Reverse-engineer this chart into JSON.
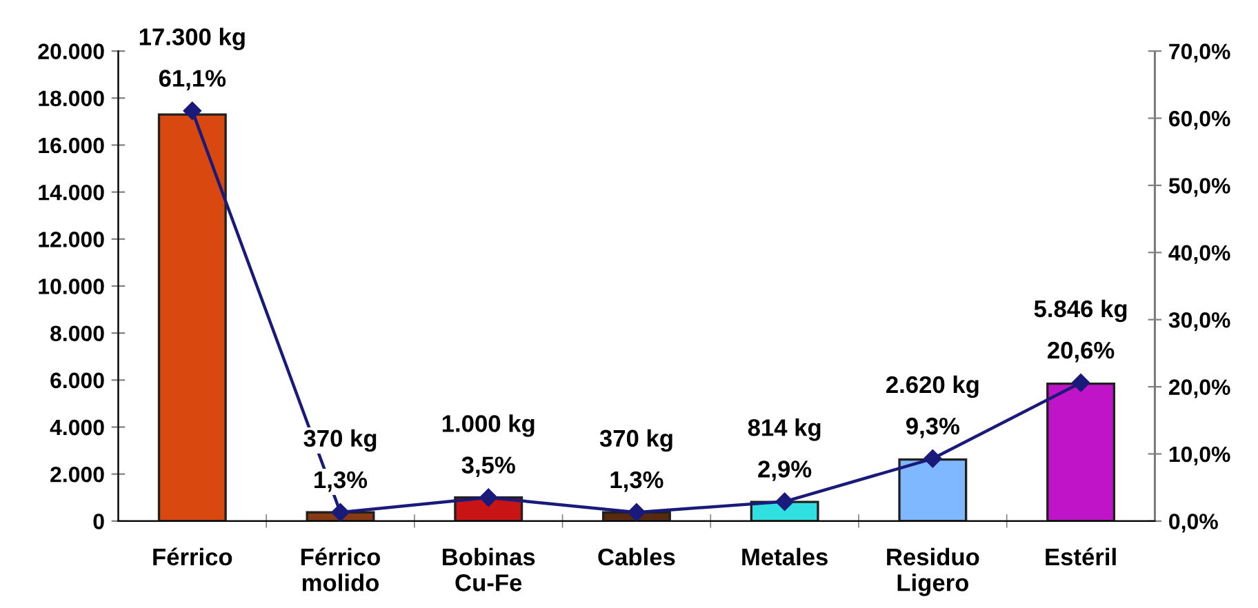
{
  "chart_data": {
    "type": "bar",
    "categories": [
      "Férrico",
      "Férrico\nmolido",
      "Bobinas\nCu-Fe",
      "Cables",
      "Metales",
      "Residuo\nLigero",
      "Estéril"
    ],
    "series": [
      {
        "colors": [
          "#d9480f",
          "#8a3a12",
          "#c81414",
          "#5a2a10",
          "#30e0e0",
          "#80b8ff",
          "#c014c8"
        ],
        "values": [
          17300,
          370,
          1000,
          370,
          814,
          2620,
          5846
        ],
        "value_labels": [
          "17.300 kg",
          "370 kg",
          "1.000 kg",
          "370 kg",
          "814 kg",
          "2.620 kg",
          "5.846 kg"
        ]
      },
      {
        "type": "line",
        "axis": "y2",
        "color": "#1a1a7a",
        "marker": "diamond",
        "values": [
          61.1,
          1.3,
          3.5,
          1.3,
          2.9,
          9.3,
          20.6
        ],
        "value_labels": [
          "61,1%",
          "1,3%",
          "3,5%",
          "1,3%",
          "2,9%",
          "9,3%",
          "20,6%"
        ]
      }
    ],
    "ylim": [
      0,
      20000
    ],
    "yticks": [
      {
        "value": 0,
        "label": "0"
      },
      {
        "value": 2000,
        "label": "2.000"
      },
      {
        "value": 4000,
        "label": "4.000"
      },
      {
        "value": 6000,
        "label": "6.000"
      },
      {
        "value": 8000,
        "label": "8.000"
      },
      {
        "value": 10000,
        "label": "10.000"
      },
      {
        "value": 12000,
        "label": "12.000"
      },
      {
        "value": 14000,
        "label": "14.000"
      },
      {
        "value": 16000,
        "label": "16.000"
      },
      {
        "value": 18000,
        "label": "18.000"
      },
      {
        "value": 20000,
        "label": "20.000"
      }
    ],
    "y2lim": [
      0,
      70
    ],
    "y2ticks": [
      {
        "value": 0,
        "label": "0,0%"
      },
      {
        "value": 10,
        "label": "10,0%"
      },
      {
        "value": 20,
        "label": "20,0%"
      },
      {
        "value": 30,
        "label": "30,0%"
      },
      {
        "value": 40,
        "label": "40,0%"
      },
      {
        "value": 50,
        "label": "50,0%"
      },
      {
        "value": 60,
        "label": "60,0%"
      },
      {
        "value": 70,
        "label": "70,0%"
      }
    ],
    "grid": false,
    "legend": false
  }
}
